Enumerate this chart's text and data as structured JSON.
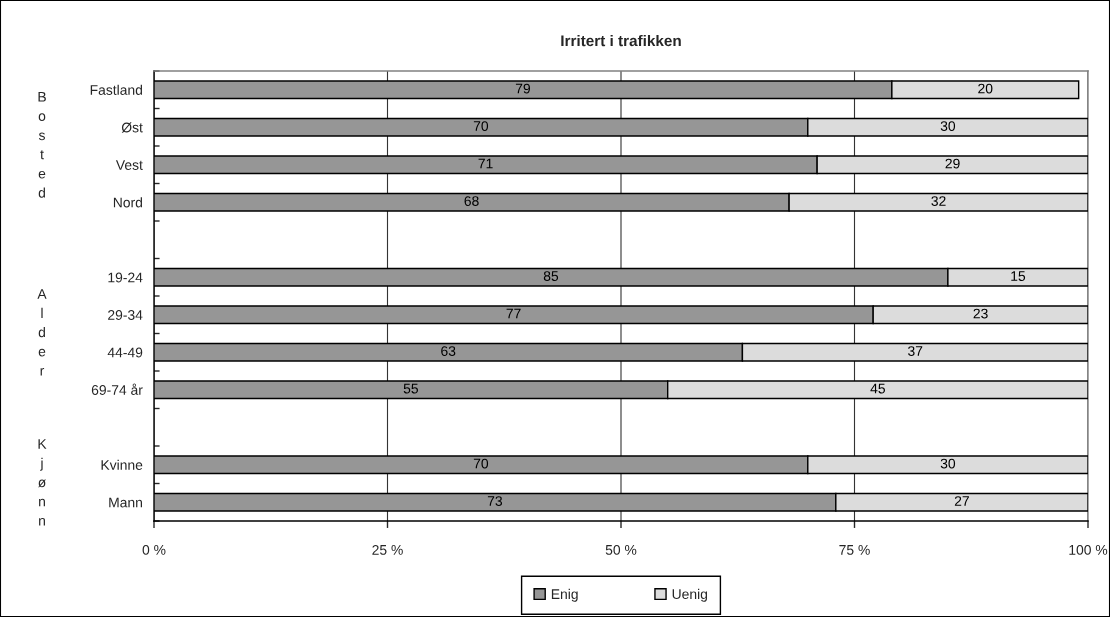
{
  "chart_data": {
    "type": "bar",
    "orientation": "horizontal",
    "stacked": true,
    "title": "Irritert i trafikken",
    "categories": [
      "Fastland",
      "Øst",
      "Vest",
      "Nord",
      null,
      "19-24",
      "29-34",
      "44-49",
      "69-74 år",
      null,
      "Kvinne",
      "Mann"
    ],
    "series": [
      {
        "name": "Enig",
        "color": "#969696",
        "values": [
          79,
          70,
          71,
          68,
          null,
          85,
          77,
          63,
          55,
          null,
          70,
          73
        ]
      },
      {
        "name": "Uenig",
        "color": "#dcdcdc",
        "values": [
          20,
          30,
          29,
          32,
          null,
          15,
          23,
          37,
          45,
          null,
          30,
          27
        ]
      }
    ],
    "xlim": [
      0,
      100
    ],
    "xticks": [
      {
        "value": 0,
        "label": "0 %"
      },
      {
        "value": 25,
        "label": "25 %"
      },
      {
        "value": 50,
        "label": "50 %"
      },
      {
        "value": 75,
        "label": "75 %"
      },
      {
        "value": 100,
        "label": "100 %"
      }
    ],
    "grid": "x",
    "legend": "bottom",
    "data_labels": true,
    "annotations": [
      "Bosted",
      "Alder",
      "Kjønn"
    ]
  }
}
